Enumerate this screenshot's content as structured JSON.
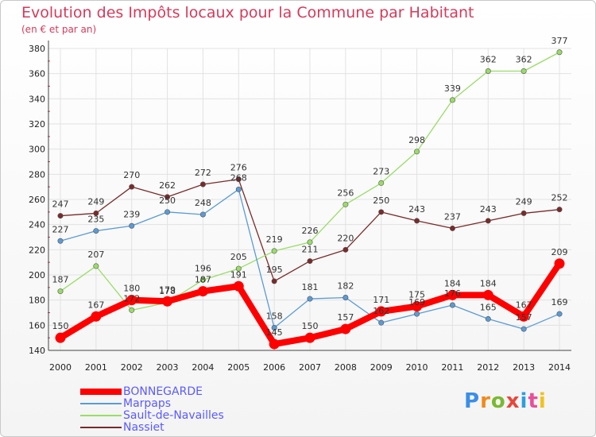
{
  "header": {
    "title": "Evolution des Impôts locaux pour la Commune par Habitant",
    "subtitle": "(en € et par an)"
  },
  "logo": {
    "letters": [
      "P",
      "r",
      "o",
      "x",
      "i",
      "t",
      "i"
    ],
    "colors": [
      "#3a8ee8",
      "#f08a1c",
      "#7ab932",
      "#e8463a",
      "#2b9fe0",
      "#e84f9a",
      "#f0c21c"
    ]
  },
  "chart_data": {
    "type": "line",
    "title": "Evolution des Impôts locaux pour la Commune par Habitant",
    "subtitle": "(en € et par an)",
    "x": [
      "2000",
      "2001",
      "2002",
      "2003",
      "2004",
      "2005",
      "2006",
      "2007",
      "2008",
      "2009",
      "2010",
      "2011",
      "2012",
      "2013",
      "2014"
    ],
    "ylim": [
      140,
      380
    ],
    "yticks": [
      140,
      160,
      180,
      200,
      220,
      240,
      260,
      280,
      300,
      320,
      340,
      360,
      380
    ],
    "grid": true,
    "legend_position": "bottom-left",
    "series": [
      {
        "name": "BONNEGARDE",
        "color": "#ff0000",
        "values": [
          150,
          167,
          180,
          179,
          187,
          191,
          145,
          150,
          157,
          171,
          175,
          184,
          184,
          167,
          209
        ]
      },
      {
        "name": "Marpaps",
        "color": "#5a9bd5",
        "values": [
          227,
          235,
          239,
          250,
          248,
          268,
          158,
          181,
          182,
          162,
          169,
          176,
          165,
          157,
          169
        ]
      },
      {
        "name": "Sault-de-Navailles",
        "color": "#99dd66",
        "values": [
          187,
          207,
          172,
          178,
          196,
          205,
          219,
          226,
          256,
          273,
          298,
          339,
          362,
          362,
          377
        ]
      },
      {
        "name": "Nassiet",
        "color": "#7a2a2a",
        "values": [
          247,
          249,
          270,
          262,
          272,
          276,
          195,
          211,
          220,
          250,
          243,
          237,
          243,
          249,
          252
        ]
      }
    ]
  }
}
